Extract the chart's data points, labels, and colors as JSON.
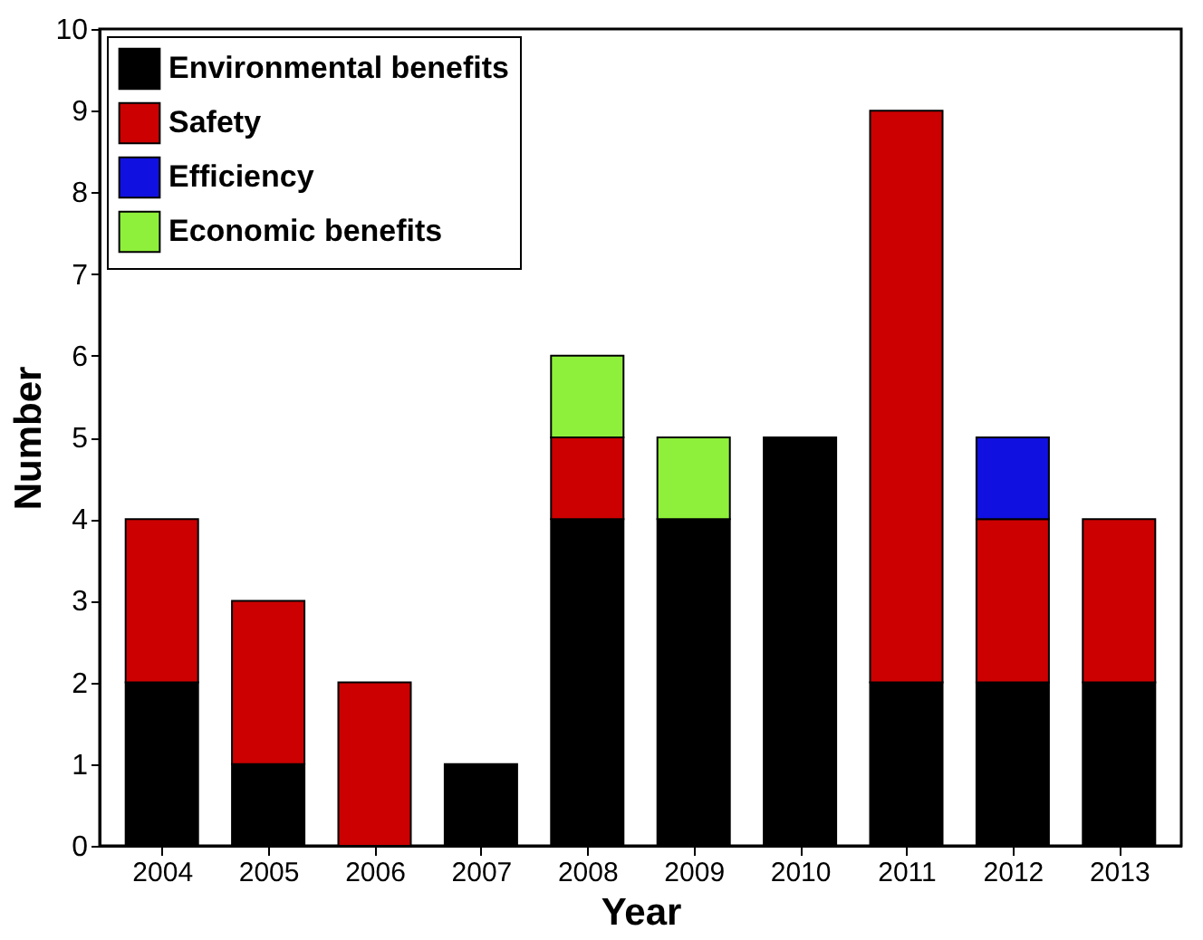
{
  "chart_data": {
    "type": "bar",
    "stacked": true,
    "xlabel": "Year",
    "ylabel": "Number",
    "categories": [
      "2004",
      "2005",
      "2006",
      "2007",
      "2008",
      "2009",
      "2010",
      "2011",
      "2012",
      "2013"
    ],
    "series": [
      {
        "name": "Environmental benefits",
        "color": "#000000",
        "values": [
          2,
          1,
          null,
          1,
          4,
          4,
          5,
          2,
          2,
          2
        ]
      },
      {
        "name": "Safety",
        "color": "#cc0000",
        "values": [
          2,
          2,
          2,
          null,
          1,
          null,
          null,
          7,
          2,
          2
        ]
      },
      {
        "name": "Efficiency",
        "color": "#1010e0",
        "values": [
          null,
          null,
          null,
          null,
          null,
          null,
          null,
          null,
          1,
          null
        ]
      },
      {
        "name": "Economic benefits",
        "color": "#8ef03a",
        "values": [
          null,
          null,
          null,
          null,
          1,
          1,
          null,
          null,
          null,
          null
        ]
      }
    ],
    "ylim": [
      0,
      10
    ],
    "yticks": [
      0,
      1,
      2,
      3,
      4,
      5,
      6,
      7,
      8,
      9,
      10
    ],
    "grid": false,
    "legend": "top left"
  }
}
